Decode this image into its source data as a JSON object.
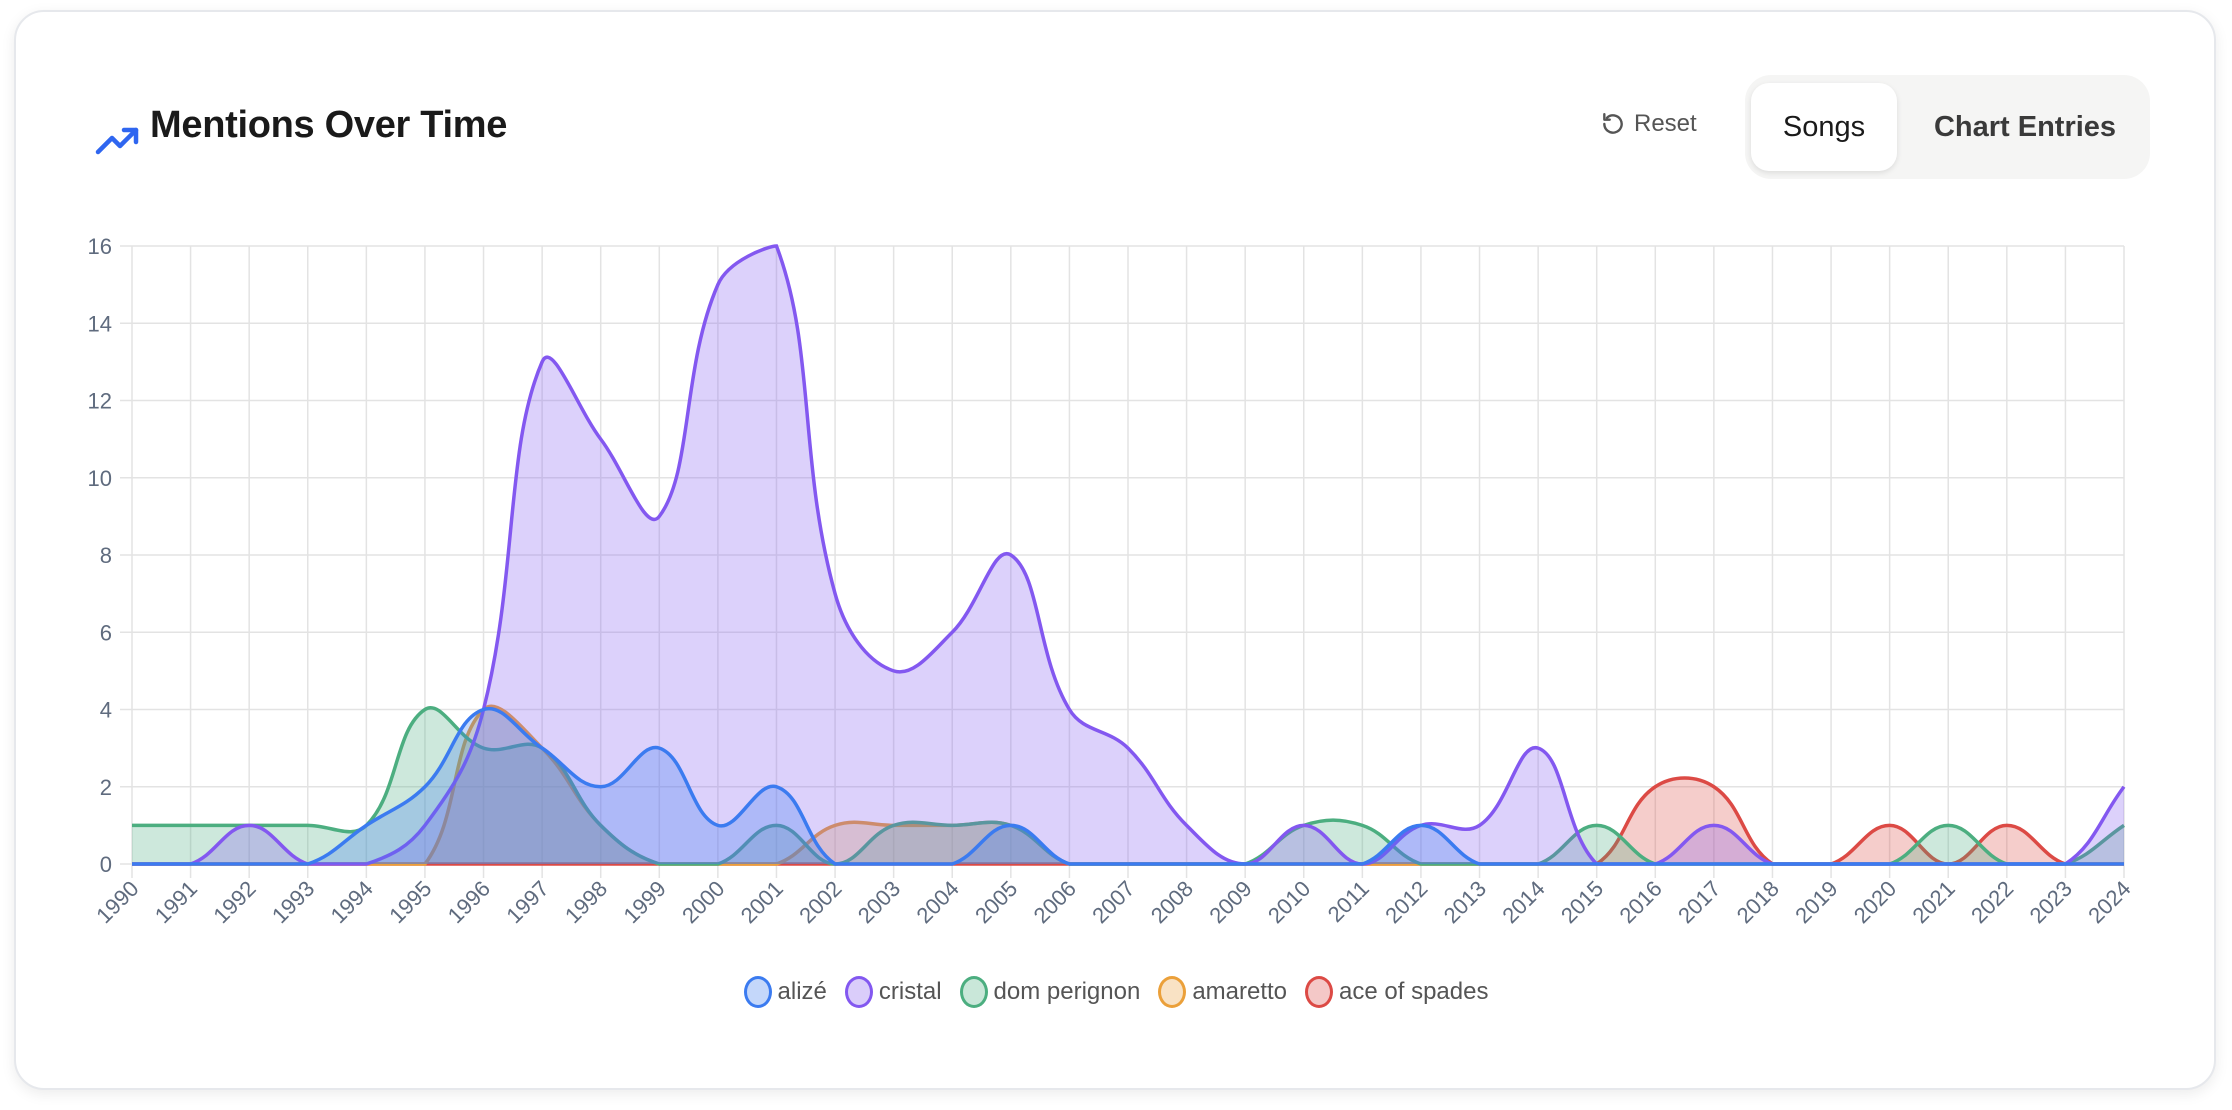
{
  "header": {
    "title": "Mentions Over Time",
    "icon": "trending-up-icon",
    "reset_label": "Reset"
  },
  "toggle": {
    "options": [
      "Songs",
      "Chart Entries"
    ],
    "selected": "Songs"
  },
  "colors": {
    "accent": "#2f66f0"
  },
  "chart_data": {
    "type": "area",
    "title": "Mentions Over Time",
    "xlabel": "",
    "ylabel": "",
    "ylim": [
      0,
      16
    ],
    "yticks": [
      0,
      2,
      4,
      6,
      8,
      10,
      12,
      14,
      16
    ],
    "grid": true,
    "legend_position": "bottom",
    "x": [
      "1990",
      "1991",
      "1992",
      "1993",
      "1994",
      "1995",
      "1996",
      "1997",
      "1998",
      "1999",
      "2000",
      "2001",
      "2002",
      "2003",
      "2004",
      "2005",
      "2006",
      "2007",
      "2008",
      "2009",
      "2010",
      "2011",
      "2012",
      "2013",
      "2014",
      "2015",
      "2016",
      "2017",
      "2018",
      "2019",
      "2020",
      "2021",
      "2022",
      "2023",
      "2024"
    ],
    "series": [
      {
        "name": "alizé",
        "color": "#3b7bf0",
        "values": [
          0,
          0,
          0,
          0,
          1,
          2,
          4,
          3,
          2,
          3,
          1,
          2,
          0,
          0,
          0,
          1,
          0,
          0,
          0,
          0,
          0,
          0,
          1,
          0,
          0,
          0,
          0,
          0,
          0,
          0,
          0,
          0,
          0,
          0,
          0
        ]
      },
      {
        "name": "cristal",
        "color": "#8358f0",
        "values": [
          0,
          0,
          1,
          0,
          0,
          1,
          4,
          13,
          11,
          9,
          15,
          16,
          7,
          5,
          6,
          8,
          4,
          3,
          1,
          0,
          1,
          0,
          1,
          1,
          3,
          0,
          0,
          1,
          0,
          0,
          0,
          0,
          0,
          0,
          2
        ]
      },
      {
        "name": "dom perignon",
        "color": "#4cae80",
        "values": [
          1,
          1,
          1,
          1,
          1,
          4,
          3,
          3,
          1,
          0,
          0,
          1,
          0,
          1,
          1,
          1,
          0,
          0,
          0,
          0,
          1,
          1,
          0,
          0,
          0,
          1,
          0,
          0,
          0,
          0,
          0,
          1,
          0,
          0,
          1
        ]
      },
      {
        "name": "amaretto",
        "color": "#eba03a",
        "values": [
          0,
          0,
          0,
          0,
          0,
          0,
          4,
          3,
          1,
          0,
          0,
          0,
          1,
          1,
          1,
          1,
          0,
          0,
          0,
          0,
          0,
          0,
          0,
          0,
          0,
          0,
          0,
          0,
          0,
          0,
          0,
          0,
          0,
          0,
          0
        ]
      },
      {
        "name": "ace of spades",
        "color": "#dc4a45",
        "values": [
          0,
          0,
          0,
          0,
          0,
          0,
          0,
          0,
          0,
          0,
          0,
          0,
          0,
          0,
          0,
          0,
          0,
          0,
          0,
          0,
          0,
          0,
          0,
          0,
          0,
          0,
          2,
          2,
          0,
          0,
          1,
          0,
          1,
          0,
          0
        ]
      }
    ]
  }
}
